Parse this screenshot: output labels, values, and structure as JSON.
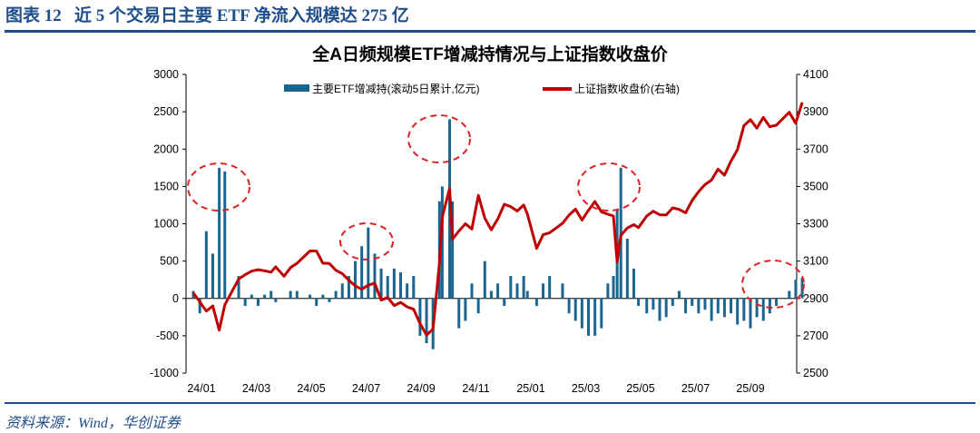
{
  "header": {
    "figure_label": "图表 12",
    "title": "近 5 个交易日主要 ETF 净流入规模达 275 亿"
  },
  "source": "资料来源：Wind，华创证券",
  "colors": {
    "bar": "#1a6690",
    "line": "#c00000",
    "header": "#1f4e8c",
    "highlight": "#e02020"
  },
  "chart_data": {
    "type": "bar+line",
    "title": "全A日频规模ETF增减持情况与上证指数收盘价",
    "legend": [
      "主要ETF增减持(滚动5日累计,亿元)",
      "上证指数收盘价(右轴)"
    ],
    "legend_placement": "top",
    "ylim_left": [
      -1000,
      3000
    ],
    "yticks_left": [
      -1000,
      -500,
      0,
      500,
      1000,
      1500,
      2000,
      2500,
      3000
    ],
    "ylim_right": [
      2500,
      4100
    ],
    "yticks_right": [
      2500,
      2700,
      2900,
      3100,
      3300,
      3500,
      3700,
      3900,
      4100
    ],
    "xticks": [
      "24/01",
      "24/03",
      "24/05",
      "24/07",
      "24/09",
      "24/11",
      "25/01",
      "25/03",
      "25/05",
      "25/07",
      "25/09"
    ],
    "grid": false,
    "columns": [
      "date",
      "etf_flow",
      "index_close"
    ],
    "points": [
      [
        "2024-01-05",
        100,
        2929
      ],
      [
        "2024-01-12",
        -200,
        2882
      ],
      [
        "2024-01-19",
        900,
        2832
      ],
      [
        "2024-01-26",
        600,
        2860
      ],
      [
        "2024-02-02",
        1750,
        2730
      ],
      [
        "2024-02-08",
        1700,
        2866
      ],
      [
        "2024-02-23",
        300,
        3004
      ],
      [
        "2024-03-01",
        -100,
        3027
      ],
      [
        "2024-03-08",
        50,
        3046
      ],
      [
        "2024-03-15",
        -100,
        3054
      ],
      [
        "2024-03-22",
        50,
        3048
      ],
      [
        "2024-03-29",
        100,
        3041
      ],
      [
        "2024-04-03",
        -50,
        3069
      ],
      [
        "2024-04-12",
        0,
        3019
      ],
      [
        "2024-04-19",
        100,
        3065
      ],
      [
        "2024-04-26",
        100,
        3088
      ],
      [
        "2024-05-10",
        50,
        3154
      ],
      [
        "2024-05-17",
        -100,
        3154
      ],
      [
        "2024-05-24",
        50,
        3089
      ],
      [
        "2024-05-31",
        -50,
        3087
      ],
      [
        "2024-06-07",
        100,
        3051
      ],
      [
        "2024-06-14",
        200,
        3032
      ],
      [
        "2024-06-21",
        300,
        2998
      ],
      [
        "2024-06-28",
        500,
        2967
      ],
      [
        "2024-07-05",
        700,
        2949
      ],
      [
        "2024-07-12",
        950,
        2971
      ],
      [
        "2024-07-19",
        600,
        2982
      ],
      [
        "2024-07-26",
        400,
        2891
      ],
      [
        "2024-08-02",
        300,
        2905
      ],
      [
        "2024-08-09",
        400,
        2862
      ],
      [
        "2024-08-16",
        350,
        2879
      ],
      [
        "2024-08-23",
        200,
        2855
      ],
      [
        "2024-08-30",
        300,
        2842
      ],
      [
        "2024-09-06",
        -500,
        2765
      ],
      [
        "2024-09-13",
        -600,
        2704
      ],
      [
        "2024-09-20",
        -680,
        2736
      ],
      [
        "2024-09-27",
        1300,
        3088
      ],
      [
        "2024-09-30",
        1500,
        3336
      ],
      [
        "2024-10-08",
        2400,
        3489
      ],
      [
        "2024-10-11",
        1300,
        3217
      ],
      [
        "2024-10-18",
        -400,
        3261
      ],
      [
        "2024-10-25",
        -300,
        3300
      ],
      [
        "2024-11-01",
        200,
        3272
      ],
      [
        "2024-11-08",
        -200,
        3452
      ],
      [
        "2024-11-15",
        500,
        3330
      ],
      [
        "2024-11-22",
        100,
        3268
      ],
      [
        "2024-11-29",
        200,
        3326
      ],
      [
        "2024-12-06",
        -100,
        3404
      ],
      [
        "2024-12-13",
        300,
        3392
      ],
      [
        "2024-12-20",
        200,
        3368
      ],
      [
        "2024-12-27",
        300,
        3400
      ],
      [
        "2024-12-31",
        100,
        3352
      ],
      [
        "2025-01-10",
        -100,
        3168
      ],
      [
        "2025-01-17",
        200,
        3241
      ],
      [
        "2025-01-24",
        300,
        3252
      ],
      [
        "2025-02-07",
        200,
        3303
      ],
      [
        "2025-02-14",
        -200,
        3346
      ],
      [
        "2025-02-21",
        -300,
        3379
      ],
      [
        "2025-02-28",
        -400,
        3320
      ],
      [
        "2025-03-07",
        -500,
        3372
      ],
      [
        "2025-03-14",
        -500,
        3419
      ],
      [
        "2025-03-21",
        -400,
        3364
      ],
      [
        "2025-03-28",
        200,
        3351
      ],
      [
        "2025-04-03",
        300,
        3342
      ],
      [
        "2025-04-07",
        1200,
        3096
      ],
      [
        "2025-04-11",
        1750,
        3238
      ],
      [
        "2025-04-18",
        800,
        3277
      ],
      [
        "2025-04-25",
        400,
        3295
      ],
      [
        "2025-04-30",
        -100,
        3279
      ],
      [
        "2025-05-09",
        -200,
        3342
      ],
      [
        "2025-05-16",
        -150,
        3367
      ],
      [
        "2025-05-23",
        -300,
        3348
      ],
      [
        "2025-05-30",
        -250,
        3347
      ],
      [
        "2025-06-06",
        -100,
        3385
      ],
      [
        "2025-06-13",
        100,
        3377
      ],
      [
        "2025-06-20",
        -200,
        3359
      ],
      [
        "2025-06-27",
        -100,
        3424
      ],
      [
        "2025-07-04",
        -200,
        3472
      ],
      [
        "2025-07-11",
        -150,
        3510
      ],
      [
        "2025-07-18",
        -300,
        3534
      ],
      [
        "2025-07-25",
        -200,
        3593
      ],
      [
        "2025-08-01",
        -250,
        3560
      ],
      [
        "2025-08-08",
        -200,
        3635
      ],
      [
        "2025-08-15",
        -350,
        3697
      ],
      [
        "2025-08-22",
        -300,
        3825
      ],
      [
        "2025-08-29",
        -400,
        3858
      ],
      [
        "2025-09-05",
        -250,
        3812
      ],
      [
        "2025-09-12",
        -300,
        3870
      ],
      [
        "2025-09-19",
        -200,
        3820
      ],
      [
        "2025-09-26",
        -100,
        3828
      ],
      [
        "2025-10-10",
        100,
        3897
      ],
      [
        "2025-10-17",
        250,
        3839
      ],
      [
        "2025-10-24",
        275,
        3950
      ]
    ]
  }
}
